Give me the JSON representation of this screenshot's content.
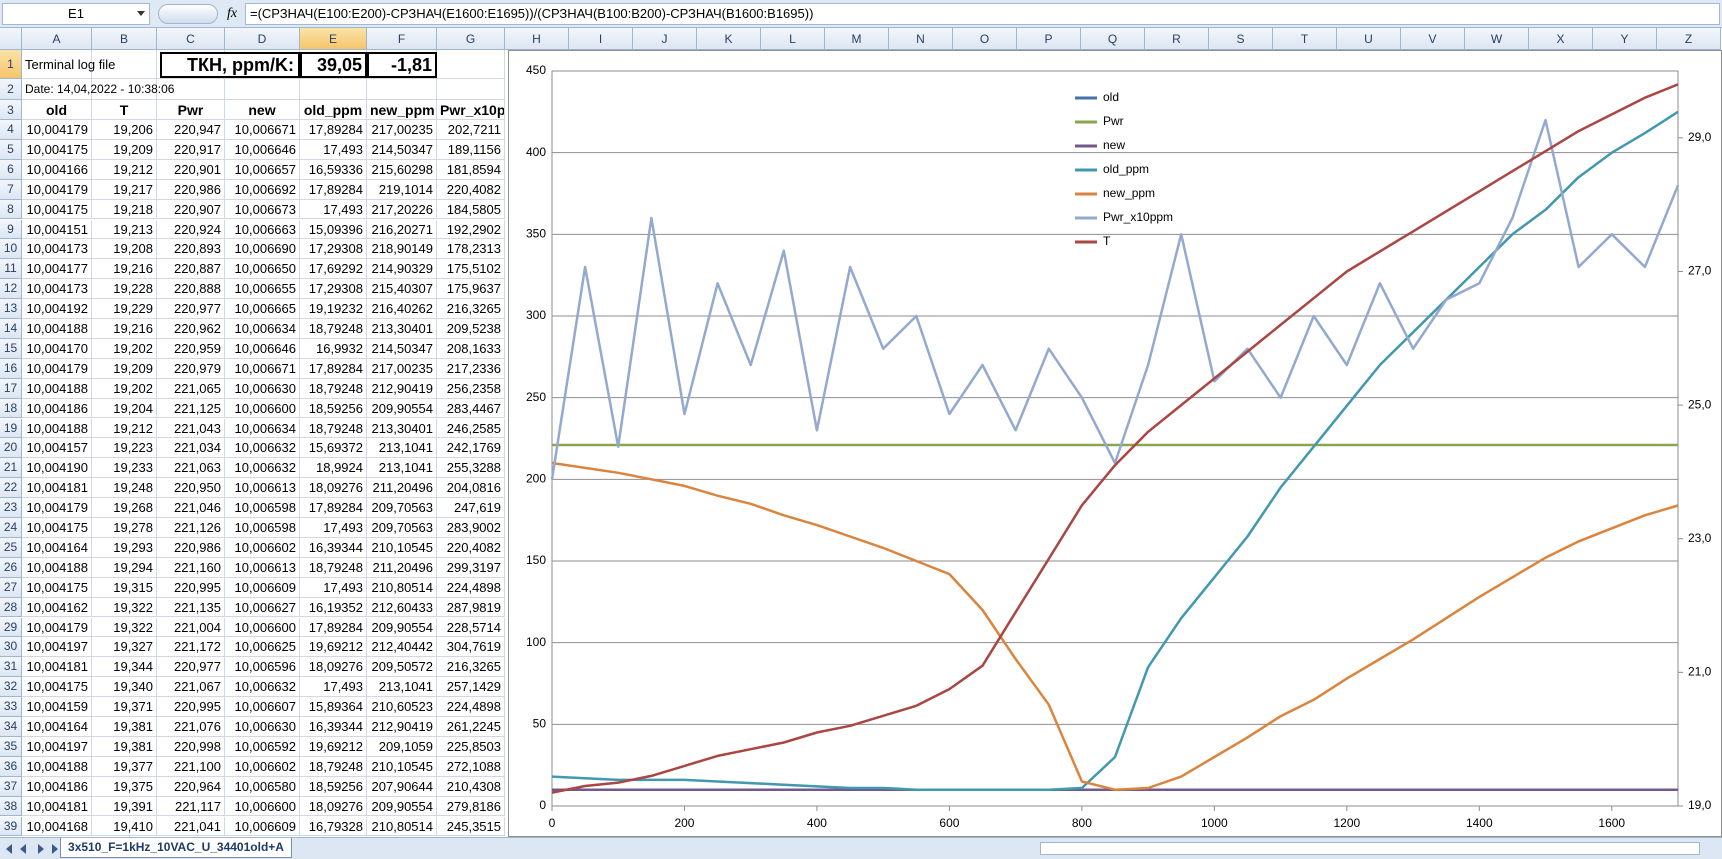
{
  "formula_bar": {
    "name_box": "E1",
    "function_icon": "fx",
    "formula": "=(СРЗНАЧ(E100:E200)-СРЗНАЧ(E1600:E1695))/(СРЗНАЧ(B100:B200)-СРЗНАЧ(B1600:B1695))"
  },
  "columns": [
    "A",
    "B",
    "C",
    "D",
    "E",
    "F",
    "G",
    "H",
    "I",
    "J",
    "K",
    "L",
    "M",
    "N",
    "O",
    "P",
    "Q",
    "R",
    "S",
    "T",
    "U",
    "V",
    "W",
    "X",
    "Y",
    "Z"
  ],
  "rows": [
    1,
    2,
    3,
    4,
    5,
    6,
    7,
    8,
    9,
    10,
    11,
    12,
    13,
    14,
    15,
    16,
    17,
    18,
    19,
    20,
    21,
    22,
    23,
    24,
    25,
    26,
    27,
    28,
    29,
    30,
    31,
    32,
    33,
    34,
    35,
    36,
    37,
    38,
    39
  ],
  "sheet": {
    "A1": "Terminal log file",
    "C1": "ТКН, ppm/K:",
    "E1": "39,05",
    "F1": "-1,81",
    "A2": "Date: 14,04,2022 - 10:38:06",
    "headers": [
      "old",
      "T",
      "Pwr",
      "new",
      "old_ppm",
      "new_ppm",
      "Pwr_x10p"
    ],
    "data": [
      [
        "10,004179",
        "19,206",
        "220,947",
        "10,006671",
        "17,89284",
        "217,00235",
        "202,7211"
      ],
      [
        "10,004175",
        "19,209",
        "220,917",
        "10,006646",
        "17,493",
        "214,50347",
        "189,1156"
      ],
      [
        "10,004166",
        "19,212",
        "220,901",
        "10,006657",
        "16,59336",
        "215,60298",
        "181,8594"
      ],
      [
        "10,004179",
        "19,217",
        "220,986",
        "10,006692",
        "17,89284",
        "219,1014",
        "220,4082"
      ],
      [
        "10,004175",
        "19,218",
        "220,907",
        "10,006673",
        "17,493",
        "217,20226",
        "184,5805"
      ],
      [
        "10,004151",
        "19,213",
        "220,924",
        "10,006663",
        "15,09396",
        "216,20271",
        "192,2902"
      ],
      [
        "10,004173",
        "19,208",
        "220,893",
        "10,006690",
        "17,29308",
        "218,90149",
        "178,2313"
      ],
      [
        "10,004177",
        "19,216",
        "220,887",
        "10,006650",
        "17,69292",
        "214,90329",
        "175,5102"
      ],
      [
        "10,004173",
        "19,228",
        "220,888",
        "10,006655",
        "17,29308",
        "215,40307",
        "175,9637"
      ],
      [
        "10,004192",
        "19,229",
        "220,977",
        "10,006665",
        "19,19232",
        "216,40262",
        "216,3265"
      ],
      [
        "10,004188",
        "19,216",
        "220,962",
        "10,006634",
        "18,79248",
        "213,30401",
        "209,5238"
      ],
      [
        "10,004170",
        "19,202",
        "220,959",
        "10,006646",
        "16,9932",
        "214,50347",
        "208,1633"
      ],
      [
        "10,004179",
        "19,209",
        "220,979",
        "10,006671",
        "17,89284",
        "217,00235",
        "217,2336"
      ],
      [
        "10,004188",
        "19,202",
        "221,065",
        "10,006630",
        "18,79248",
        "212,90419",
        "256,2358"
      ],
      [
        "10,004186",
        "19,204",
        "221,125",
        "10,006600",
        "18,59256",
        "209,90554",
        "283,4467"
      ],
      [
        "10,004188",
        "19,212",
        "221,043",
        "10,006634",
        "18,79248",
        "213,30401",
        "246,2585"
      ],
      [
        "10,004157",
        "19,223",
        "221,034",
        "10,006632",
        "15,69372",
        "213,1041",
        "242,1769"
      ],
      [
        "10,004190",
        "19,233",
        "221,063",
        "10,006632",
        "18,9924",
        "213,1041",
        "255,3288"
      ],
      [
        "10,004181",
        "19,248",
        "220,950",
        "10,006613",
        "18,09276",
        "211,20496",
        "204,0816"
      ],
      [
        "10,004179",
        "19,268",
        "221,046",
        "10,006598",
        "17,89284",
        "209,70563",
        "247,619"
      ],
      [
        "10,004175",
        "19,278",
        "221,126",
        "10,006598",
        "17,493",
        "209,70563",
        "283,9002"
      ],
      [
        "10,004164",
        "19,293",
        "220,986",
        "10,006602",
        "16,39344",
        "210,10545",
        "220,4082"
      ],
      [
        "10,004188",
        "19,294",
        "221,160",
        "10,006613",
        "18,79248",
        "211,20496",
        "299,3197"
      ],
      [
        "10,004175",
        "19,315",
        "220,995",
        "10,006609",
        "17,493",
        "210,80514",
        "224,4898"
      ],
      [
        "10,004162",
        "19,322",
        "221,135",
        "10,006627",
        "16,19352",
        "212,60433",
        "287,9819"
      ],
      [
        "10,004179",
        "19,322",
        "221,004",
        "10,006600",
        "17,89284",
        "209,90554",
        "228,5714"
      ],
      [
        "10,004197",
        "19,327",
        "221,172",
        "10,006625",
        "19,69212",
        "212,40442",
        "304,7619"
      ],
      [
        "10,004181",
        "19,344",
        "220,977",
        "10,006596",
        "18,09276",
        "209,50572",
        "216,3265"
      ],
      [
        "10,004175",
        "19,340",
        "221,067",
        "10,006632",
        "17,493",
        "213,1041",
        "257,1429"
      ],
      [
        "10,004159",
        "19,371",
        "220,995",
        "10,006607",
        "15,89364",
        "210,60523",
        "224,4898"
      ],
      [
        "10,004164",
        "19,381",
        "221,076",
        "10,006630",
        "16,39344",
        "212,90419",
        "261,2245"
      ],
      [
        "10,004197",
        "19,381",
        "220,998",
        "10,006592",
        "19,69212",
        "209,1059",
        "225,8503"
      ],
      [
        "10,004188",
        "19,377",
        "221,100",
        "10,006602",
        "18,79248",
        "210,10545",
        "272,1088"
      ],
      [
        "10,004186",
        "19,375",
        "220,964",
        "10,006580",
        "18,59256",
        "207,90644",
        "210,4308"
      ],
      [
        "10,004181",
        "19,391",
        "221,117",
        "10,006600",
        "18,09276",
        "209,90554",
        "279,8186"
      ],
      [
        "10,004168",
        "19,410",
        "221,041",
        "10,006609",
        "16,79328",
        "210,80514",
        "245,3515"
      ]
    ]
  },
  "sheet_tab": "3x510_F=1kHz_10VAC_U_34401old+A",
  "chart_data": {
    "type": "line",
    "grid": true,
    "legend": "top",
    "x": [
      0,
      50,
      100,
      150,
      200,
      250,
      300,
      350,
      400,
      450,
      500,
      550,
      600,
      650,
      700,
      750,
      800,
      850,
      900,
      950,
      1000,
      1050,
      1100,
      1150,
      1200,
      1250,
      1300,
      1350,
      1400,
      1450,
      1500,
      1550,
      1600,
      1650,
      1700
    ],
    "xlim": [
      0,
      1700
    ],
    "xticks": [
      0,
      200,
      400,
      600,
      800,
      1000,
      1200,
      1400,
      1600
    ],
    "ylim": [
      0,
      450
    ],
    "yticks": [
      0,
      50,
      100,
      150,
      200,
      250,
      300,
      350,
      400,
      450
    ],
    "y2lim": [
      19,
      30
    ],
    "y2ticks": [
      {
        "value": 19,
        "label": "19,0"
      },
      {
        "value": 21,
        "label": "21,0"
      },
      {
        "value": 23,
        "label": "23,0"
      },
      {
        "value": 25,
        "label": "25,0"
      },
      {
        "value": 27,
        "label": "27,0"
      },
      {
        "value": 29,
        "label": "29,0"
      }
    ],
    "series": [
      {
        "name": "old",
        "color": "#4572a7",
        "values": [
          10,
          10,
          10,
          10,
          10,
          10,
          10,
          10,
          10,
          10,
          10,
          10,
          10,
          10,
          10,
          10,
          10,
          10,
          10,
          10,
          10,
          10,
          10,
          10,
          10,
          10,
          10,
          10,
          10,
          10,
          10,
          10,
          10,
          10,
          10
        ]
      },
      {
        "name": "Pwr",
        "color": "#89a54e",
        "values": [
          221,
          221,
          221,
          221,
          221,
          221,
          221,
          221,
          221,
          221,
          221,
          221,
          221,
          221,
          221,
          221,
          221,
          221,
          221,
          221,
          221,
          221,
          221,
          221,
          221,
          221,
          221,
          221,
          221,
          221,
          221,
          221,
          221,
          221,
          221
        ]
      },
      {
        "name": "new",
        "color": "#71588f",
        "values": [
          10,
          10,
          10,
          10,
          10,
          10,
          10,
          10,
          10,
          10,
          10,
          10,
          10,
          10,
          10,
          10,
          10,
          10,
          10,
          10,
          10,
          10,
          10,
          10,
          10,
          10,
          10,
          10,
          10,
          10,
          10,
          10,
          10,
          10,
          10
        ]
      },
      {
        "name": "old_ppm",
        "color": "#4198af",
        "values": [
          18,
          17,
          16,
          16,
          16,
          15,
          14,
          13,
          12,
          11,
          11,
          10,
          10,
          10,
          10,
          10,
          11,
          30,
          85,
          115,
          140,
          165,
          195,
          220,
          245,
          270,
          290,
          310,
          330,
          350,
          365,
          385,
          400,
          412,
          425
        ]
      },
      {
        "name": "new_ppm",
        "color": "#db843d",
        "values": [
          210,
          207,
          204,
          200,
          196,
          190,
          185,
          178,
          172,
          165,
          158,
          150,
          142,
          120,
          90,
          62,
          15,
          10,
          11,
          18,
          30,
          42,
          55,
          65,
          78,
          90,
          102,
          115,
          128,
          140,
          152,
          162,
          170,
          178,
          184
        ]
      },
      {
        "name": "Pwr_x10ppm",
        "color": "#93a9cf",
        "values": [
          200,
          330,
          220,
          360,
          240,
          320,
          270,
          340,
          230,
          330,
          280,
          300,
          240,
          270,
          230,
          280,
          250,
          210,
          270,
          350,
          260,
          280,
          250,
          300,
          270,
          320,
          280,
          310,
          320,
          360,
          420,
          330,
          350,
          330,
          380
        ]
      },
      {
        "name": "T",
        "color": "#aa4643",
        "axis": "y2",
        "values": [
          19.2,
          19.3,
          19.35,
          19.45,
          19.6,
          19.75,
          19.85,
          19.95,
          20.1,
          20.2,
          20.35,
          20.5,
          20.75,
          21.1,
          21.9,
          22.7,
          23.5,
          24.1,
          24.6,
          25.0,
          25.4,
          25.8,
          26.2,
          26.6,
          27.0,
          27.3,
          27.6,
          27.9,
          28.2,
          28.5,
          28.8,
          29.1,
          29.35,
          29.6,
          29.8
        ]
      }
    ]
  }
}
